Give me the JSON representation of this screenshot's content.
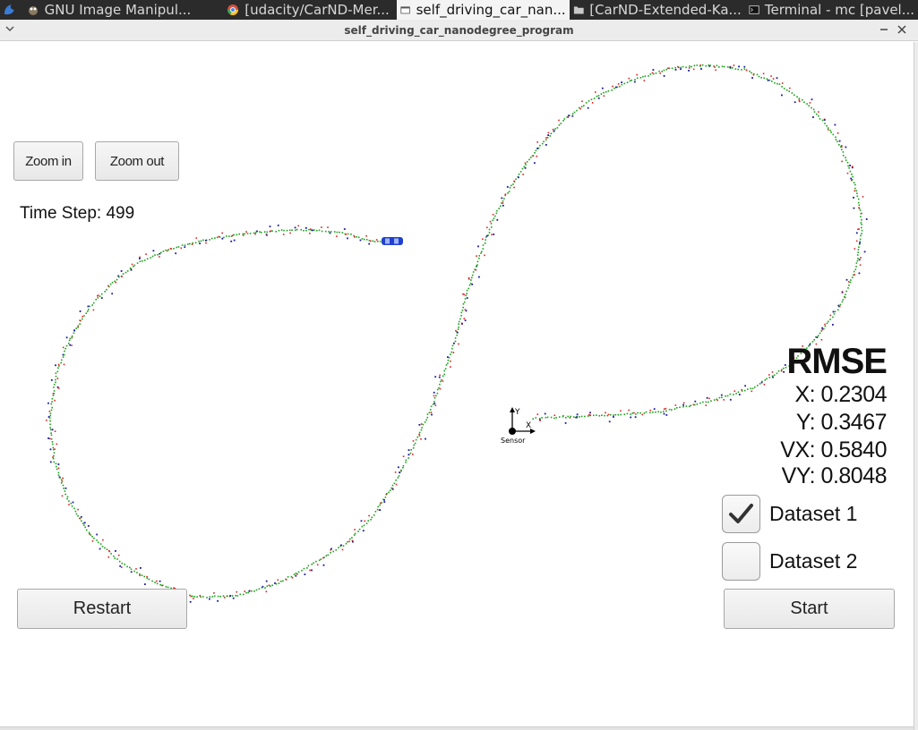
{
  "taskbar": {
    "items": [
      {
        "label": "GNU Image Manipul...",
        "icon": "gimp-icon"
      },
      {
        "label": "[udacity/CarND-Mer...",
        "icon": "chrome-icon"
      },
      {
        "label": "self_driving_car_nan...",
        "icon": "window-icon",
        "active": true
      },
      {
        "label": "[CarND-Extended-Ka...",
        "icon": "folder-icon"
      },
      {
        "label": "Terminal - mc [pavel...",
        "icon": "terminal-icon"
      }
    ]
  },
  "window": {
    "title": "self_driving_car_nanodegree_program"
  },
  "controls": {
    "zoom_in": "Zoom in",
    "zoom_out": "Zoom out",
    "restart": "Restart",
    "start": "Start"
  },
  "status": {
    "time_step": "Time Step: 499"
  },
  "rmse": {
    "title": "RMSE",
    "x": "X: 0.2304",
    "y": "Y: 0.3467",
    "vx": "VX: 0.5840",
    "vy": "VY: 0.8048"
  },
  "datasets": {
    "dataset1": {
      "label": "Dataset 1",
      "checked": true
    },
    "dataset2": {
      "label": "Dataset 2",
      "checked": false
    }
  },
  "sensor": {
    "label": "Sensor",
    "axis_x": "X",
    "axis_y": "Y"
  },
  "colors": {
    "estimate": "#1aa01a",
    "lidar": "#e02020",
    "radar": "#1a1aa0",
    "car": "#2040d0"
  }
}
